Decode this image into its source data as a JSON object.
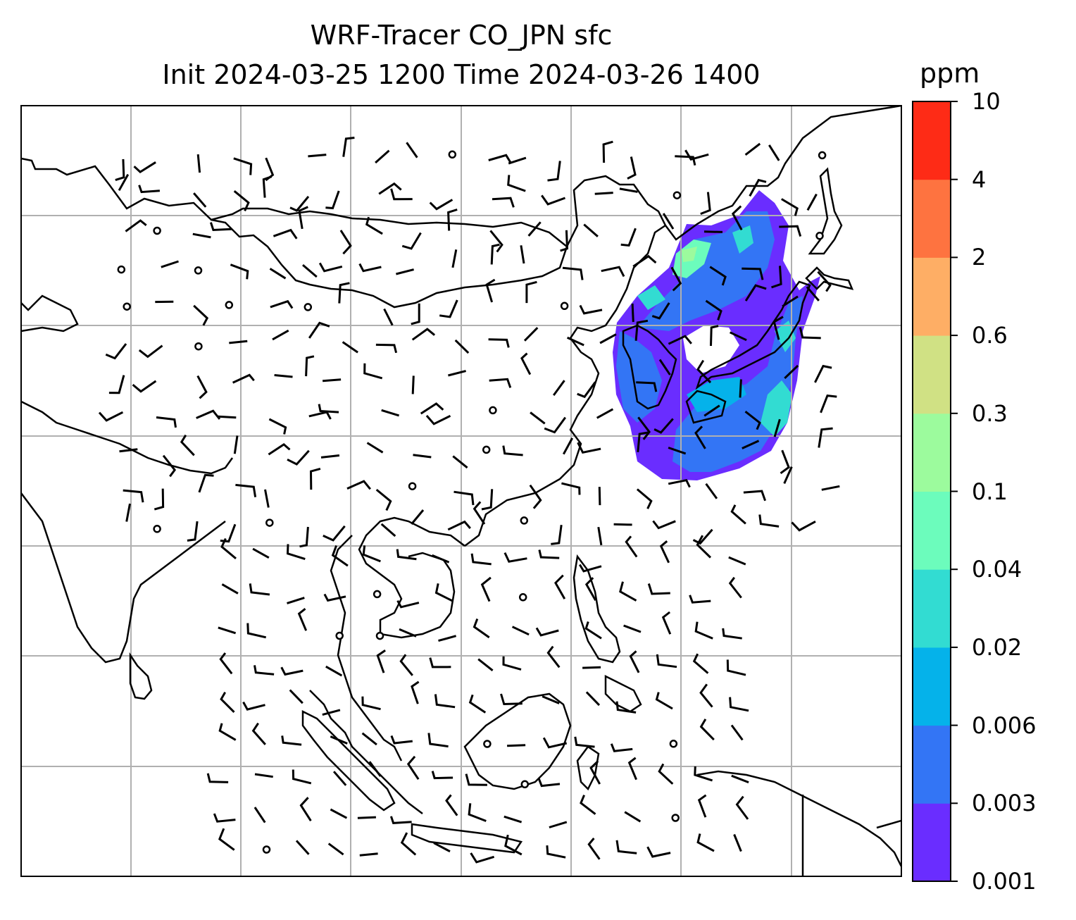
{
  "title_line1": "WRF-Tracer CO_JPN sfc",
  "title_line2": "Init 2024-03-25 1200 Time 2024-03-26 1400",
  "colorbar": {
    "unit": "ppm",
    "tick_labels": [
      "0.001",
      "0.003",
      "0.006",
      "0.02",
      "0.04",
      "0.1",
      "0.3",
      "0.6",
      "2",
      "4",
      "10"
    ],
    "colors": [
      "#6a2dff",
      "#3375f5",
      "#05b2ea",
      "#32dcd2",
      "#6cfcbc",
      "#9cfb9d",
      "#d0e184",
      "#feae65",
      "#fe7340",
      "#fe2b16"
    ]
  },
  "chart_data": {
    "type": "map",
    "variable": "CO_JPN tracer, surface",
    "unit": "ppm",
    "levels": [
      0.001,
      0.003,
      0.006,
      0.02,
      0.04,
      0.1,
      0.3,
      0.6,
      2,
      4,
      10
    ],
    "overlay": "wind barbs",
    "gridlines": true
  }
}
